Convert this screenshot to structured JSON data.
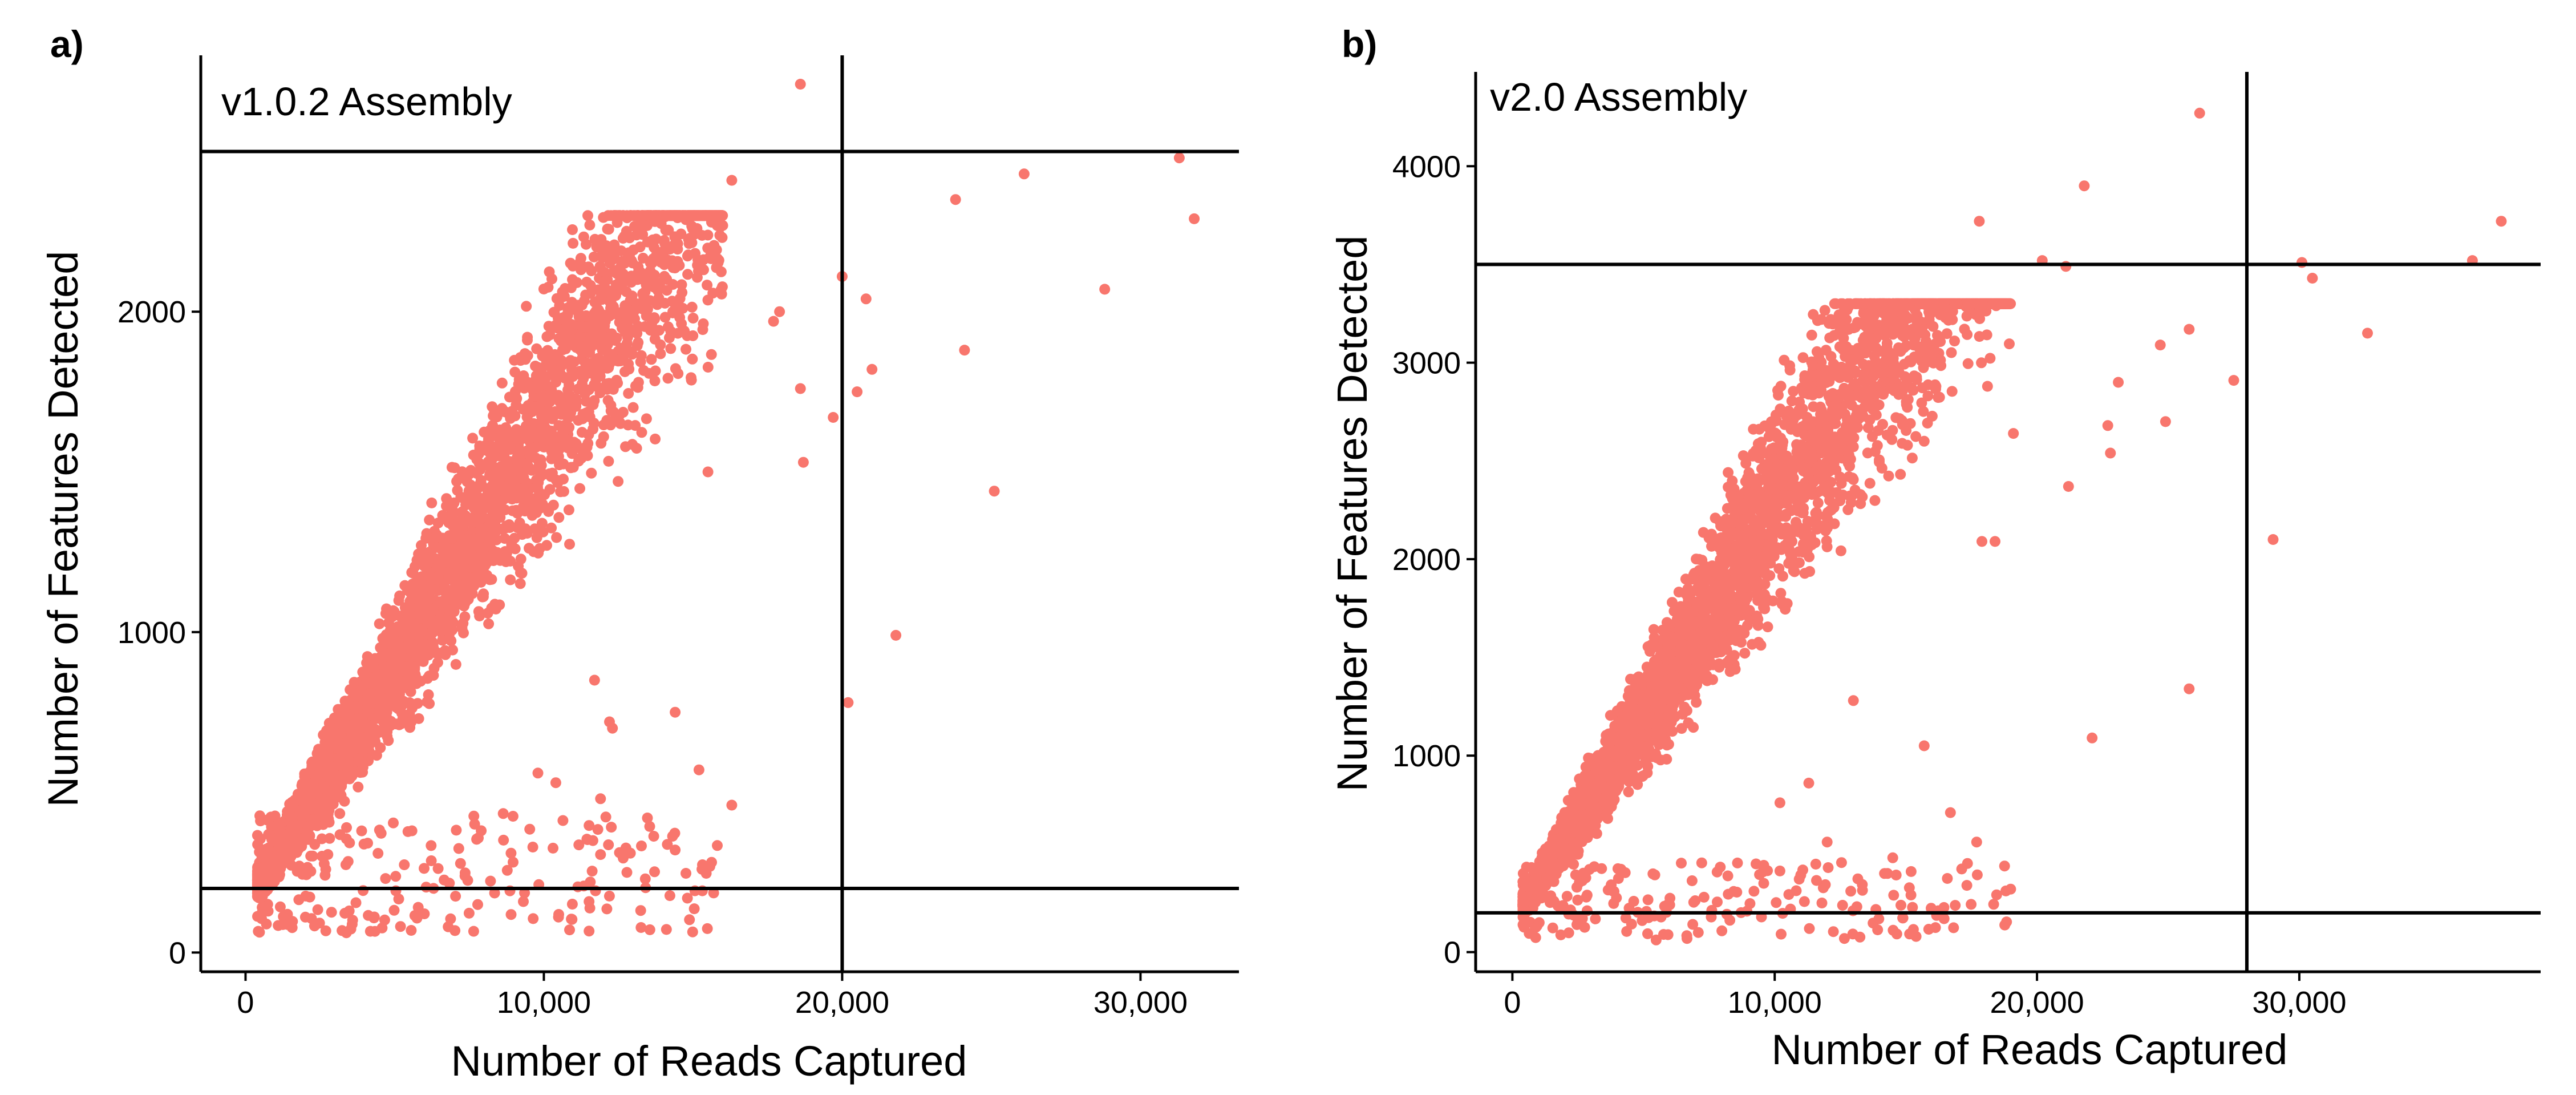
{
  "figure": {
    "background": "#ffffff",
    "point_color": "#F8766D",
    "line_color": "#000000"
  },
  "chart_data": [
    {
      "type": "scatter",
      "panel_label": "a)",
      "title": "v1.0.2 Assembly",
      "xlabel": "Number of Reads Captured",
      "ylabel": "Number of Features Detected",
      "xlim": [
        -1500,
        33300
      ],
      "ylim": [
        -60,
        2800
      ],
      "xticks": [
        0,
        10000,
        20000,
        30000
      ],
      "xtick_labels": [
        "0",
        "10,000",
        "20,000",
        "30,000"
      ],
      "yticks": [
        0,
        1000,
        2000
      ],
      "ytick_labels": [
        "0",
        "1000",
        "2000"
      ],
      "threshold_lines": {
        "vertical_x": 20000,
        "horizontal_y": [
          200,
          2500
        ]
      },
      "legend": "none",
      "grid": false,
      "cluster_model": {
        "n_points": 4200,
        "x_range": [
          400,
          16000
        ],
        "y_at_x_0": 150,
        "slope_per_1000_reads": 150,
        "y_cap": 2300,
        "y_min": 60,
        "seed": 11
      },
      "outliers": [
        [
          18600,
          2710
        ],
        [
          31300,
          2480
        ],
        [
          31800,
          2290
        ],
        [
          16300,
          2410
        ],
        [
          26100,
          2430
        ],
        [
          23800,
          2350
        ],
        [
          20000,
          2110
        ],
        [
          20800,
          2040
        ],
        [
          28800,
          2070
        ],
        [
          17700,
          1970
        ],
        [
          17900,
          2000
        ],
        [
          18600,
          1760
        ],
        [
          19700,
          1670
        ],
        [
          21000,
          1820
        ],
        [
          20500,
          1750
        ],
        [
          24100,
          1880
        ],
        [
          25100,
          1440
        ],
        [
          15500,
          1500
        ],
        [
          18700,
          1530
        ],
        [
          21800,
          990
        ],
        [
          20200,
          780
        ],
        [
          16300,
          460
        ],
        [
          14400,
          750
        ],
        [
          12900,
          310
        ],
        [
          14400,
          320
        ],
        [
          13400,
          230
        ],
        [
          15300,
          260
        ],
        [
          15200,
          570
        ],
        [
          10400,
          530
        ],
        [
          11900,
          480
        ],
        [
          12200,
          720
        ],
        [
          9800,
          560
        ],
        [
          7900,
          380
        ],
        [
          8900,
          310
        ],
        [
          11700,
          850
        ],
        [
          12300,
          700
        ]
      ]
    },
    {
      "type": "scatter",
      "panel_label": "b)",
      "title": "v2.0 Assembly",
      "xlabel": "Number of Reads Captured",
      "ylabel": "Number of Features Detected",
      "xlim": [
        -1400,
        39200
      ],
      "ylim": [
        -100,
        4480
      ],
      "xticks": [
        0,
        10000,
        20000,
        30000
      ],
      "xtick_labels": [
        "0",
        "10,000",
        "20,000",
        "30,000"
      ],
      "yticks": [
        0,
        1000,
        2000,
        3000,
        4000
      ],
      "ytick_labels": [
        "0",
        "1000",
        "2000",
        "3000",
        "4000"
      ],
      "threshold_lines": {
        "vertical_x": 28000,
        "horizontal_y": [
          200,
          3500
        ]
      },
      "legend": "none",
      "grid": false,
      "cluster_model": {
        "n_points": 4400,
        "x_range": [
          400,
          19000
        ],
        "y_at_x_0": 160,
        "slope_per_1000_reads": 210,
        "y_cap": 3300,
        "y_min": 60,
        "seed": 29
      },
      "outliers": [
        [
          26200,
          4270
        ],
        [
          21800,
          3900
        ],
        [
          17800,
          3720
        ],
        [
          37700,
          3720
        ],
        [
          30100,
          3510
        ],
        [
          36600,
          3520
        ],
        [
          20200,
          3520
        ],
        [
          30500,
          3430
        ],
        [
          21100,
          3490
        ],
        [
          32600,
          3150
        ],
        [
          24700,
          3090
        ],
        [
          25800,
          3170
        ],
        [
          27500,
          2910
        ],
        [
          23100,
          2900
        ],
        [
          22700,
          2680
        ],
        [
          22800,
          2540
        ],
        [
          24900,
          2700
        ],
        [
          19100,
          2640
        ],
        [
          21200,
          2370
        ],
        [
          29000,
          2100
        ],
        [
          17900,
          2090
        ],
        [
          22100,
          1090
        ],
        [
          25800,
          1340
        ],
        [
          15700,
          1050
        ],
        [
          16700,
          710
        ],
        [
          17700,
          560
        ],
        [
          15200,
          410
        ],
        [
          14300,
          400
        ],
        [
          12900,
          310
        ],
        [
          11800,
          250
        ],
        [
          14500,
          480
        ],
        [
          12000,
          560
        ],
        [
          11300,
          860
        ],
        [
          10200,
          760
        ],
        [
          13000,
          1280
        ],
        [
          18400,
          2090
        ]
      ]
    }
  ]
}
